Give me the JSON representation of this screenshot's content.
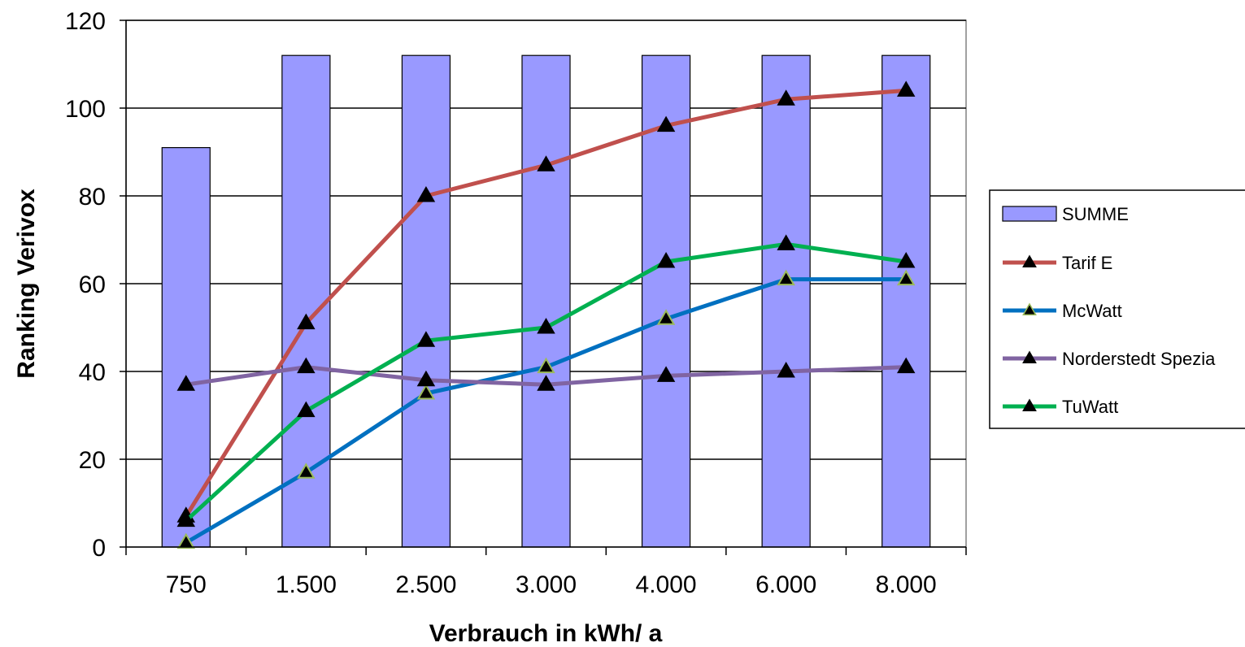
{
  "chart_data": {
    "type": "bar",
    "categories": [
      "750",
      "1.500",
      "2.500",
      "3.000",
      "4.000",
      "6.000",
      "8.000"
    ],
    "xlabel": "Verbrauch in kWh/ a",
    "ylabel": "Ranking Verivox",
    "ylim": [
      0,
      120
    ],
    "yticks": [
      0,
      20,
      40,
      60,
      80,
      100,
      120
    ],
    "grid": "horizontal",
    "legend_position": "right",
    "bar_series": {
      "name": "SUMME",
      "color": "#9999ff",
      "values": [
        91,
        112,
        112,
        112,
        112,
        112,
        112
      ]
    },
    "series": [
      {
        "name": "Tarif E",
        "type": "line",
        "color": "#c0504d",
        "marker": "triangle",
        "marker_edge": "#000000",
        "values": [
          7,
          51,
          80,
          87,
          96,
          102,
          104
        ]
      },
      {
        "name": "McWatt",
        "type": "line",
        "color": "#0070c0",
        "marker": "triangle",
        "marker_edge": "#9bbb59",
        "values": [
          1,
          17,
          35,
          41,
          52,
          61,
          61
        ]
      },
      {
        "name": "Norderstedt Spezia",
        "type": "line",
        "color": "#8064a2",
        "marker": "triangle",
        "marker_edge": "#000000",
        "values": [
          37,
          41,
          38,
          37,
          39,
          40,
          41
        ]
      },
      {
        "name": "TuWatt",
        "type": "line",
        "color": "#00b050",
        "marker": "triangle",
        "marker_edge": "#000000",
        "values": [
          6,
          31,
          47,
          50,
          65,
          69,
          65
        ]
      }
    ]
  }
}
